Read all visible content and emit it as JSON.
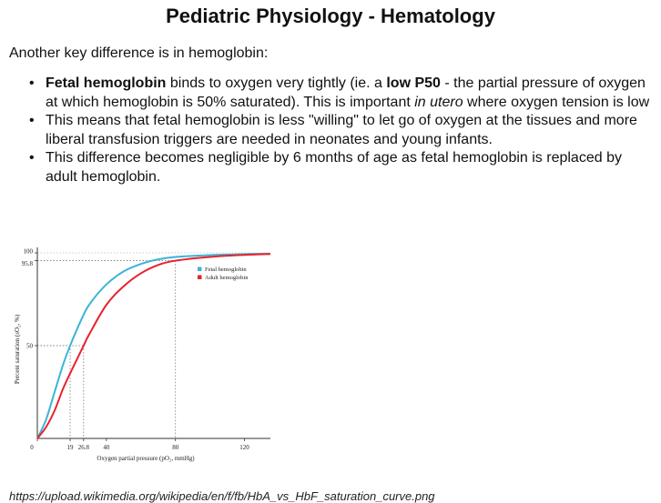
{
  "title": "Pediatric Physiology - Hematology",
  "intro": "Another key difference is in hemoglobin:",
  "bullets": [
    {
      "line1": [
        "",
        "Fetal hemoglobin",
        " binds to oxygen very tightly (ie. a ",
        "low P50",
        " - the partial pressure of oxygen"
      ],
      "line2": [
        "at which hemoglobin is 50% saturated).  This is important ",
        "in utero",
        " where oxygen tension is low"
      ]
    },
    {
      "line1": "This means that fetal hemoglobin is less \"willing\" to let go of oxygen at the tissues and more",
      "line2": "liberal transfusion triggers are needed in neonates and young infants."
    },
    {
      "line1": "This difference becomes negligible by 6 months of age as fetal hemoglobin is replaced by",
      "line2": "adult hemoglobin."
    }
  ],
  "caption": "https://upload.wikimedia.org/wikipedia/en/f/fb/HbA_vs_HbF_saturation_curve.png",
  "chart_data": {
    "type": "line",
    "xlabel": "Oxygen partial pressure (pO₂, mmHg)",
    "ylabel": "Percent saturation (sO₂, %)",
    "xlim": [
      0,
      135
    ],
    "ylim": [
      0,
      100
    ],
    "x_ticks": [
      "0",
      "19",
      "26.8",
      "40",
      "80",
      "120"
    ],
    "y_ticks": [
      "50",
      "95.8",
      "100"
    ],
    "legend_position": "top-right",
    "series": [
      {
        "name": "Fetal hemoglobin",
        "color": "#3db4d4",
        "x": [
          0,
          5,
          10,
          15,
          19,
          25,
          30,
          40,
          50,
          60,
          70,
          80,
          100,
          120,
          135
        ],
        "y": [
          0,
          10,
          25,
          40,
          50,
          63,
          72,
          83,
          90,
          94,
          96.5,
          97.8,
          98.8,
          99.3,
          99.6
        ]
      },
      {
        "name": "Adult hemoglobin",
        "color": "#e8222e",
        "x": [
          0,
          5,
          10,
          15,
          20,
          26.8,
          30,
          40,
          50,
          60,
          70,
          80,
          100,
          120,
          135
        ],
        "y": [
          0,
          6,
          15,
          27,
          37,
          50,
          56,
          72,
          82,
          89,
          93.5,
          95.8,
          97.8,
          98.9,
          99.4
        ]
      }
    ],
    "annotations": [
      {
        "x": 19,
        "y": 50
      },
      {
        "x": 26.8,
        "y": 50
      },
      {
        "x": 80,
        "y": 95.8
      }
    ]
  }
}
